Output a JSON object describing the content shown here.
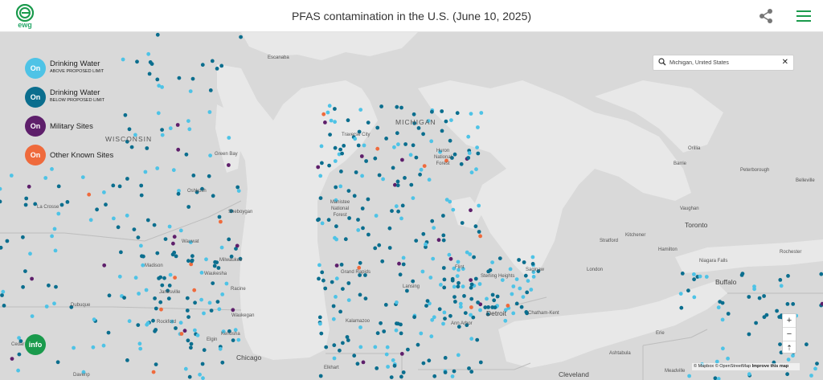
{
  "header": {
    "logo_text": "ewg",
    "title": "PFAS contamination in the U.S. (June 10, 2025)"
  },
  "search": {
    "value": "Michigan, United States",
    "clear_label": "✕"
  },
  "legend": [
    {
      "toggle": "On",
      "label": "Drinking Water",
      "sub": "ABOVE PROPOSED LIMIT",
      "color": "#4ec3e6"
    },
    {
      "toggle": "On",
      "label": "Drinking Water",
      "sub": "BELOW PROPOSED LIMIT",
      "color": "#0b6e8e"
    },
    {
      "toggle": "On",
      "label": "Military Sites",
      "sub": "",
      "color": "#5e1f6b"
    },
    {
      "toggle": "On",
      "label": "Other Known Sites",
      "sub": "",
      "color": "#ef6a3c"
    }
  ],
  "info_label": "info",
  "zoom": {
    "in": "+",
    "out": "−",
    "compass": "⇡"
  },
  "attribution": {
    "mapbox": "© Mapbox",
    "osm": "© OpenStreetMap",
    "improve": "Improve this map"
  },
  "places": {
    "states": [
      "WISCONSIN",
      "MICHIGAN"
    ],
    "cities": [
      "Toronto",
      "Chicago",
      "Detroit",
      "Buffalo",
      "Cleveland"
    ],
    "towns": [
      "Escanaba",
      "Green Bay",
      "Oshkosh",
      "Sheboygan",
      "Milwaukee",
      "Madison",
      "Racine",
      "Waukegan",
      "Rockford",
      "Janesville",
      "Dubuque",
      "La Crosse",
      "Elgin",
      "Cedar",
      "Davenp",
      "Traverse City",
      "Huron National Forest",
      "Manistee National Forest",
      "Grand Rapids",
      "Kalamazoo",
      "Lansing",
      "Ann Arbor",
      "Flint",
      "Sterling Heights",
      "Saginaw",
      "Chatham-Kent",
      "London",
      "Kitchener",
      "Stratford",
      "Hamilton",
      "Niagara Falls",
      "Rochester",
      "Erie",
      "Ashtabula",
      "Meadville",
      "Orillia",
      "Barrie",
      "Peterborough",
      "Belleville",
      "Vaughan",
      "Elkhart",
      "Waukesha",
      "Kenosha",
      "Wauwat"
    ]
  },
  "colors": {
    "land": "#d9d9d9",
    "water": "#e8e8e8",
    "border": "#bdbdbd",
    "ewg_green": "#1a9a4c",
    "above": "#4ec3e6",
    "below": "#0b6e8e",
    "military": "#5e1f6b",
    "other": "#ef6a3c"
  }
}
